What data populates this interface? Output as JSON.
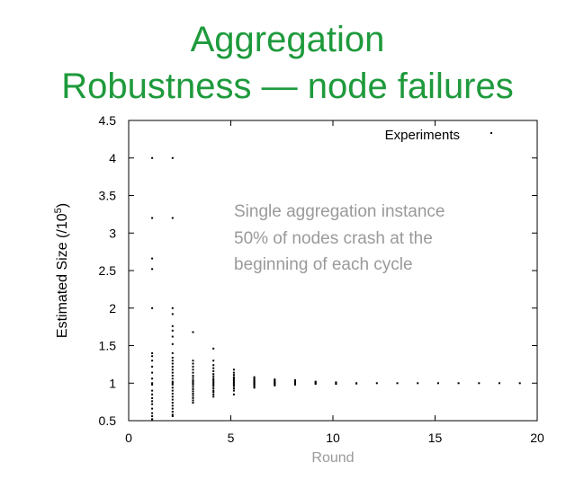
{
  "slide": {
    "title_line1": "Aggregation",
    "title_line2": "Robustness — node failures"
  },
  "colors": {
    "title": "#1e9a3c",
    "annotation": "#9a9a9a",
    "points": "#000000",
    "axes": "#000000"
  },
  "chart_data": {
    "type": "scatter",
    "xlabel": "Round",
    "ylabel_prefix": "Estimated Size (/10",
    "ylabel_exp": "5",
    "ylabel_suffix": ")",
    "xlim": [
      0,
      20
    ],
    "ylim": [
      0.5,
      4.5
    ],
    "xticks": [
      0,
      5,
      10,
      15,
      20
    ],
    "yticks": [
      0.5,
      1,
      1.5,
      2,
      2.5,
      3,
      3.5,
      4,
      4.5
    ],
    "xtick_labels": [
      "0",
      "5",
      "10",
      "15",
      "20"
    ],
    "ytick_labels": [
      "0.5",
      "1",
      "1.5",
      "2",
      "2.5",
      "3",
      "3.5",
      "4",
      "4.5"
    ],
    "grid": false,
    "legend_position": "top-right",
    "annotation": [
      "Single aggregation instance",
      "50% of nodes crash at the",
      "beginning of each cycle"
    ],
    "series": [
      {
        "name": "Experiments",
        "points": [
          [
            1,
            4.0
          ],
          [
            1,
            3.2
          ],
          [
            1,
            2.66
          ],
          [
            1,
            2.52
          ],
          [
            1,
            2.0
          ],
          [
            1,
            1.4
          ],
          [
            1,
            1.36
          ],
          [
            1,
            1.3
          ],
          [
            1,
            1.22
          ],
          [
            1,
            1.14
          ],
          [
            1,
            1.06
          ],
          [
            1,
            1.0
          ],
          [
            1,
            0.98
          ],
          [
            1,
            0.9
          ],
          [
            1,
            0.85
          ],
          [
            1,
            0.8
          ],
          [
            1,
            0.76
          ],
          [
            1,
            0.72
          ],
          [
            1,
            0.66
          ],
          [
            1,
            0.6
          ],
          [
            1,
            0.56
          ],
          [
            1,
            0.52
          ],
          [
            1,
            0.51
          ],
          [
            2,
            4.0
          ],
          [
            2,
            3.2
          ],
          [
            2,
            2.0
          ],
          [
            2,
            1.92
          ],
          [
            2,
            1.76
          ],
          [
            2,
            1.7
          ],
          [
            2,
            1.62
          ],
          [
            2,
            1.52
          ],
          [
            2,
            1.4
          ],
          [
            2,
            1.34
          ],
          [
            2,
            1.3
          ],
          [
            2,
            1.26
          ],
          [
            2,
            1.22
          ],
          [
            2,
            1.18
          ],
          [
            2,
            1.14
          ],
          [
            2,
            1.1
          ],
          [
            2,
            1.06
          ],
          [
            2,
            1.02
          ],
          [
            2,
            1.0
          ],
          [
            2,
            0.98
          ],
          [
            2,
            0.94
          ],
          [
            2,
            0.9
          ],
          [
            2,
            0.86
          ],
          [
            2,
            0.82
          ],
          [
            2,
            0.78
          ],
          [
            2,
            0.74
          ],
          [
            2,
            0.7
          ],
          [
            2,
            0.66
          ],
          [
            2,
            0.62
          ],
          [
            2,
            0.58
          ],
          [
            2,
            0.56
          ],
          [
            3,
            1.68
          ],
          [
            3,
            1.3
          ],
          [
            3,
            1.26
          ],
          [
            3,
            1.22
          ],
          [
            3,
            1.18
          ],
          [
            3,
            1.14
          ],
          [
            3,
            1.1
          ],
          [
            3,
            1.07
          ],
          [
            3,
            1.04
          ],
          [
            3,
            1.02
          ],
          [
            3,
            1.0
          ],
          [
            3,
            0.98
          ],
          [
            3,
            0.95
          ],
          [
            3,
            0.92
          ],
          [
            3,
            0.89
          ],
          [
            3,
            0.86
          ],
          [
            3,
            0.83
          ],
          [
            3,
            0.8
          ],
          [
            3,
            0.77
          ],
          [
            3,
            0.74
          ],
          [
            4,
            1.46
          ],
          [
            4,
            1.3
          ],
          [
            4,
            1.24
          ],
          [
            4,
            1.2
          ],
          [
            4,
            1.16
          ],
          [
            4,
            1.12
          ],
          [
            4,
            1.09
          ],
          [
            4,
            1.06
          ],
          [
            4,
            1.04
          ],
          [
            4,
            1.02
          ],
          [
            4,
            1.0
          ],
          [
            4,
            0.98
          ],
          [
            4,
            0.96
          ],
          [
            4,
            0.93
          ],
          [
            4,
            0.9
          ],
          [
            4,
            0.88
          ],
          [
            4,
            0.85
          ],
          [
            4,
            0.82
          ],
          [
            5,
            1.18
          ],
          [
            5,
            1.14
          ],
          [
            5,
            1.11
          ],
          [
            5,
            1.08
          ],
          [
            5,
            1.06
          ],
          [
            5,
            1.04
          ],
          [
            5,
            1.02
          ],
          [
            5,
            1.0
          ],
          [
            5,
            0.98
          ],
          [
            5,
            0.96
          ],
          [
            5,
            0.93
          ],
          [
            5,
            0.9
          ],
          [
            5,
            0.85
          ],
          [
            6,
            1.08
          ],
          [
            6,
            1.06
          ],
          [
            6,
            1.04
          ],
          [
            6,
            1.03
          ],
          [
            6,
            1.02
          ],
          [
            6,
            1.01
          ],
          [
            6,
            1.0
          ],
          [
            6,
            0.99
          ],
          [
            6,
            0.98
          ],
          [
            6,
            0.97
          ],
          [
            6,
            0.95
          ],
          [
            6,
            0.94
          ],
          [
            7,
            1.05
          ],
          [
            7,
            1.03
          ],
          [
            7,
            1.02
          ],
          [
            7,
            1.01
          ],
          [
            7,
            1.0
          ],
          [
            7,
            0.99
          ],
          [
            7,
            0.98
          ],
          [
            7,
            0.97
          ],
          [
            8,
            1.04
          ],
          [
            8,
            1.02
          ],
          [
            8,
            1.01
          ],
          [
            8,
            1.0
          ],
          [
            8,
            0.99
          ],
          [
            8,
            0.98
          ],
          [
            9,
            1.02
          ],
          [
            9,
            1.01
          ],
          [
            9,
            1.0
          ],
          [
            9,
            0.99
          ],
          [
            10,
            1.01
          ],
          [
            10,
            1.0
          ],
          [
            10,
            0.99
          ],
          [
            11,
            1.0
          ],
          [
            11,
            0.995
          ],
          [
            12,
            1.0
          ],
          [
            13,
            1.0
          ],
          [
            14,
            1.0
          ],
          [
            15,
            1.0
          ],
          [
            16,
            1.0
          ],
          [
            17,
            1.0
          ],
          [
            18,
            1.0
          ],
          [
            19,
            1.0
          ]
        ]
      }
    ]
  }
}
